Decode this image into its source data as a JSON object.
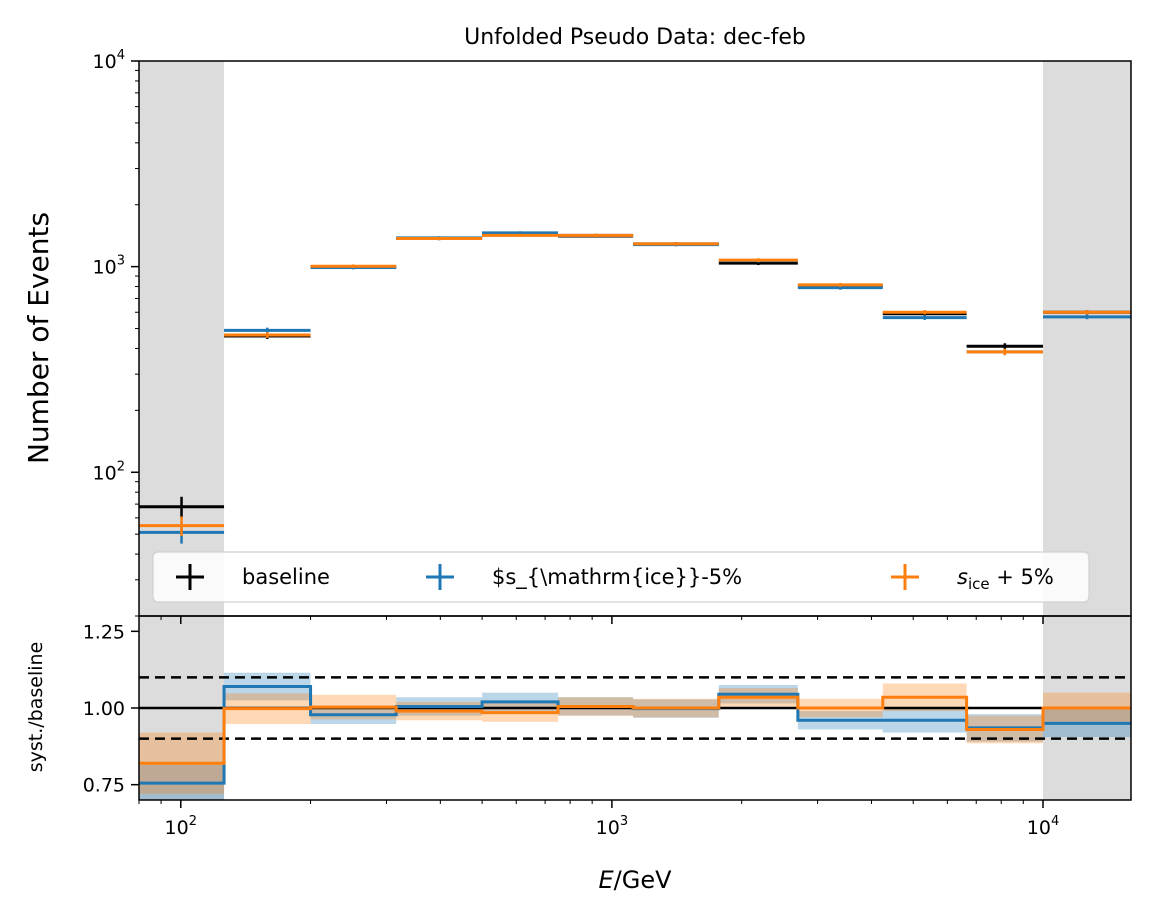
{
  "chart_data": [
    {
      "type": "line",
      "panel": "main",
      "title": "Unfolded Pseudo Data: dec-feb",
      "ylabel": "Number of Events",
      "yscale": "log",
      "ylim": [
        20,
        10000
      ],
      "yticks": [
        {
          "value": 100,
          "base": "10",
          "exp": "2"
        },
        {
          "value": 1000,
          "base": "10",
          "exp": "3"
        },
        {
          "value": 10000,
          "base": "10",
          "exp": "4"
        }
      ],
      "shaded_ranges": [
        [
          80,
          126
        ],
        [
          10000,
          16000
        ]
      ],
      "bin_edges": [
        80,
        126,
        200,
        316,
        500,
        750,
        1120,
        1770,
        2700,
        4250,
        6650,
        10000,
        16000
      ],
      "series": [
        {
          "name": "baseline",
          "color": "#000000",
          "values": [
            68,
            460,
            1000,
            1370,
            1430,
            1410,
            1290,
            1040,
            810,
            590,
            410,
            600
          ],
          "errors": [
            8,
            15,
            20,
            25,
            25,
            25,
            25,
            22,
            18,
            15,
            14,
            15
          ]
        },
        {
          "name": "$s_{\\mathrm{ice}}-5%",
          "color": "#1f77b4",
          "values": [
            51,
            490,
            990,
            1380,
            1460,
            1420,
            1280,
            1070,
            790,
            565,
            385,
            570
          ],
          "errors": [
            6,
            15,
            20,
            25,
            25,
            25,
            25,
            22,
            18,
            15,
            14,
            15
          ]
        },
        {
          "name": "s_ice + 5%",
          "name_base": "s",
          "name_sub": "ice",
          "name_suffix": " + 5%",
          "color": "#ff7f0e",
          "values": [
            55,
            465,
            1005,
            1370,
            1420,
            1420,
            1290,
            1075,
            815,
            600,
            385,
            600
          ],
          "errors": [
            6,
            15,
            20,
            25,
            25,
            25,
            25,
            22,
            18,
            15,
            14,
            15
          ]
        }
      ],
      "legend": "lower-center"
    },
    {
      "type": "line",
      "panel": "ratio",
      "ylabel": "syst./baseline",
      "xlabel": "E/GeV",
      "xlabel_italic": "E",
      "xlabel_rest": "/GeV",
      "xscale": "log",
      "xlim": [
        80,
        16000
      ],
      "xticks": [
        {
          "value": 100,
          "base": "10",
          "exp": "2"
        },
        {
          "value": 1000,
          "base": "10",
          "exp": "3"
        },
        {
          "value": 10000,
          "base": "10",
          "exp": "4"
        }
      ],
      "ylim": [
        0.7,
        1.3
      ],
      "yticks": [
        "0.75",
        "1.00",
        "1.25"
      ],
      "ytick_values": [
        0.75,
        1.0,
        1.25
      ],
      "reference_lines": [
        0.9,
        1.0,
        1.1
      ],
      "series": [
        {
          "name": "$s_{\\mathrm{ice}}-5%",
          "color": "#1f77b4",
          "values": [
            0.755,
            1.07,
            0.978,
            1.005,
            1.02,
            1.005,
            0.998,
            1.045,
            0.96,
            0.96,
            0.935,
            0.95
          ],
          "band": [
            0.06,
            0.045,
            0.03,
            0.03,
            0.03,
            0.03,
            0.03,
            0.03,
            0.03,
            0.04,
            0.045,
            0.045
          ]
        },
        {
          "name": "s_ice + 5%",
          "color": "#ff7f0e",
          "values": [
            0.82,
            0.998,
            1.003,
            0.99,
            0.985,
            1.005,
            1.0,
            1.035,
            1.0,
            1.035,
            0.93,
            1.0
          ],
          "band": [
            0.1,
            0.05,
            0.04,
            0.03,
            0.03,
            0.03,
            0.03,
            0.03,
            0.03,
            0.045,
            0.045,
            0.05
          ]
        }
      ]
    }
  ]
}
